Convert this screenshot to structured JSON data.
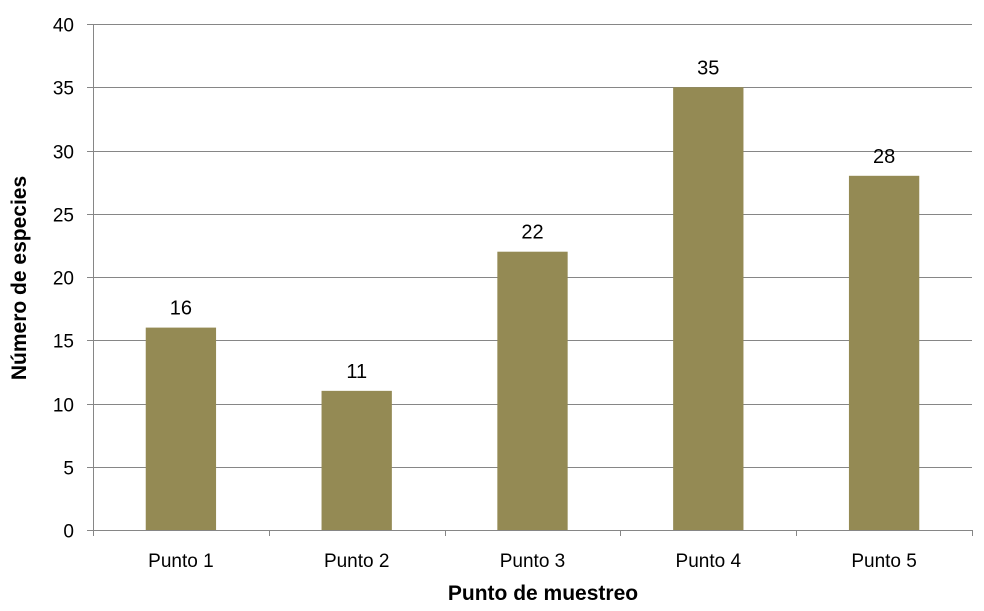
{
  "chart_data": {
    "type": "bar",
    "categories": [
      "Punto 1",
      "Punto 2",
      "Punto 3",
      "Punto 4",
      "Punto 5"
    ],
    "values": [
      16,
      11,
      22,
      35,
      28
    ],
    "data_labels": [
      "16",
      "11",
      "22",
      "35",
      "28"
    ],
    "title": "",
    "xlabel": "Punto de muestreo",
    "ylabel": "Número de especies",
    "ylim": [
      0,
      40
    ],
    "yticks": [
      0,
      5,
      10,
      15,
      20,
      25,
      30,
      35,
      40
    ],
    "grid": true,
    "legend": "none",
    "colors": {
      "bar": "#948A54",
      "grid": "#868686",
      "axis": "#868686"
    }
  }
}
